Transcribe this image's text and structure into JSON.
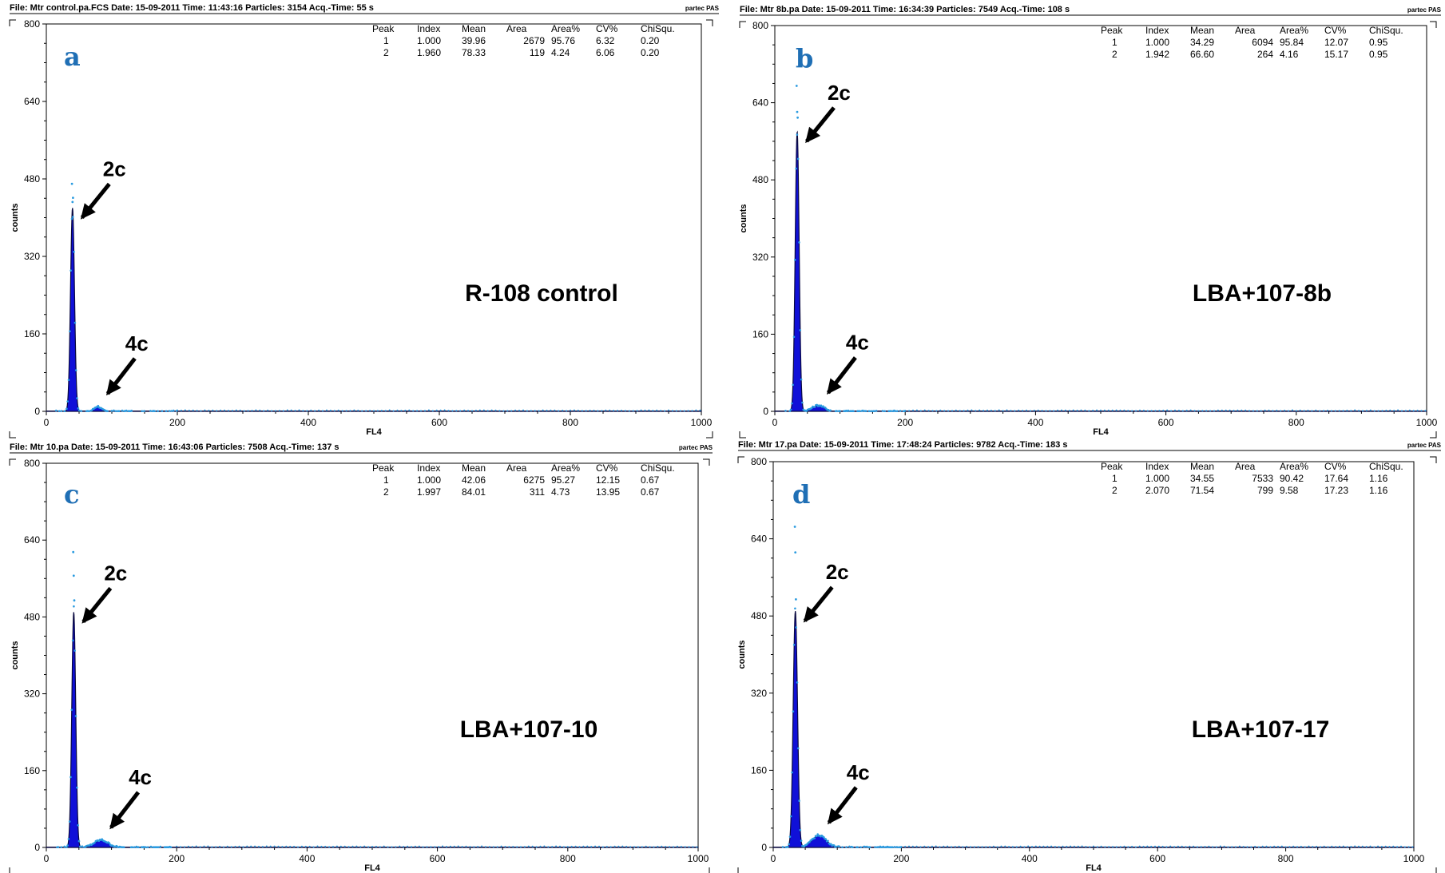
{
  "chart_data": [
    {
      "type": "area",
      "panel_letter": "a",
      "header": {
        "file": "File: Mtr control.pa.FCS",
        "date": "Date: 15-09-2011",
        "time": "Time: 11:43:16",
        "particles": "Particles: 3154",
        "acq_time": "Acq.-Time: 55 s",
        "brand": "partec PAS"
      },
      "xlabel": "FL4",
      "ylabel": "counts",
      "xlim": [
        0,
        1000
      ],
      "ylim": [
        0,
        800
      ],
      "x_ticks": [
        "0",
        "200",
        "400",
        "600",
        "800",
        "1000"
      ],
      "y_ticks": [
        "0",
        "160",
        "320",
        "480",
        "640",
        "800"
      ],
      "sample_label": "R-108 control",
      "annotations": {
        "peak1": "2c",
        "peak2": "4c"
      },
      "stats_table": {
        "columns": [
          "Peak",
          "Index",
          "Mean",
          "Area",
          "Area%",
          "CV%",
          "ChiSqu."
        ],
        "rows": [
          [
            "1",
            "1.000",
            "39.96",
            "2679",
            "95.76",
            "6.32",
            "0.20"
          ],
          [
            "2",
            "1.960",
            "78.33",
            "119",
            "4.24",
            "6.06",
            "0.20"
          ]
        ]
      },
      "peaks": [
        {
          "mean": 39.96,
          "height": 420,
          "cv": 6.32
        },
        {
          "mean": 78.33,
          "height": 10,
          "cv": 6.06
        }
      ],
      "outlier_max": 470
    },
    {
      "type": "area",
      "panel_letter": "b",
      "header": {
        "file": "File: Mtr 8b.pa",
        "date": "Date: 15-09-2011",
        "time": "Time: 16:34:39",
        "particles": "Particles: 7549",
        "acq_time": "Acq.-Time: 108 s",
        "brand": "partec PAS"
      },
      "xlabel": "FL4",
      "ylabel": "counts",
      "xlim": [
        0,
        1000
      ],
      "ylim": [
        0,
        800
      ],
      "x_ticks": [
        "0",
        "200",
        "400",
        "600",
        "800",
        "1000"
      ],
      "y_ticks": [
        "0",
        "160",
        "320",
        "480",
        "640",
        "800"
      ],
      "sample_label": "LBA+107-8b",
      "annotations": {
        "peak1": "2c",
        "peak2": "4c"
      },
      "stats_table": {
        "columns": [
          "Peak",
          "Index",
          "Mean",
          "Area",
          "Area%",
          "CV%",
          "ChiSqu."
        ],
        "rows": [
          [
            "1",
            "1.000",
            "34.29",
            "6094",
            "95.84",
            "12.07",
            "0.95"
          ],
          [
            "2",
            "1.942",
            "66.60",
            "264",
            "4.16",
            "15.17",
            "0.95"
          ]
        ]
      },
      "peaks": [
        {
          "mean": 34.29,
          "height": 580,
          "cv": 12.07
        },
        {
          "mean": 66.6,
          "height": 12,
          "cv": 15.17
        }
      ],
      "outlier_max": 675
    },
    {
      "type": "area",
      "panel_letter": "c",
      "header": {
        "file": "File: Mtr 10.pa",
        "date": "Date: 15-09-2011",
        "time": "Time: 16:43:06",
        "particles": "Particles: 7508",
        "acq_time": "Acq.-Time: 137 s",
        "brand": "partec PAS"
      },
      "xlabel": "FL4",
      "ylabel": "counts",
      "xlim": [
        0,
        1000
      ],
      "ylim": [
        0,
        800
      ],
      "x_ticks": [
        "0",
        "200",
        "400",
        "600",
        "800",
        "1000"
      ],
      "y_ticks": [
        "0",
        "160",
        "320",
        "480",
        "640",
        "800"
      ],
      "sample_label": "LBA+107-10",
      "annotations": {
        "peak1": "2c",
        "peak2": "4c"
      },
      "stats_table": {
        "columns": [
          "Peak",
          "Index",
          "Mean",
          "Area",
          "Area%",
          "CV%",
          "ChiSqu."
        ],
        "rows": [
          [
            "1",
            "1.000",
            "42.06",
            "6275",
            "95.27",
            "12.15",
            "0.67"
          ],
          [
            "2",
            "1.997",
            "84.01",
            "311",
            "4.73",
            "13.95",
            "0.67"
          ]
        ]
      },
      "peaks": [
        {
          "mean": 42.06,
          "height": 490,
          "cv": 12.15
        },
        {
          "mean": 84.01,
          "height": 15,
          "cv": 13.95
        }
      ],
      "outlier_max": 615
    },
    {
      "type": "area",
      "panel_letter": "d",
      "header": {
        "file": "File: Mtr 17.pa",
        "date": "Date: 15-09-2011",
        "time": "Time: 17:48:24",
        "particles": "Particles: 9782",
        "acq_time": "Acq.-Time: 183 s",
        "brand": "partec PAS"
      },
      "xlabel": "FL4",
      "ylabel": "counts",
      "xlim": [
        0,
        1000
      ],
      "ylim": [
        0,
        800
      ],
      "x_ticks": [
        "0",
        "200",
        "400",
        "600",
        "800",
        "1000"
      ],
      "y_ticks": [
        "0",
        "160",
        "320",
        "480",
        "640",
        "800"
      ],
      "sample_label": "LBA+107-17",
      "annotations": {
        "peak1": "2c",
        "peak2": "4c"
      },
      "stats_table": {
        "columns": [
          "Peak",
          "Index",
          "Mean",
          "Area",
          "Area%",
          "CV%",
          "ChiSqu."
        ],
        "rows": [
          [
            "1",
            "1.000",
            "34.55",
            "7533",
            "90.42",
            "17.64",
            "1.16"
          ],
          [
            "2",
            "2.070",
            "71.54",
            "799",
            "9.58",
            "17.23",
            "1.16"
          ]
        ]
      },
      "peaks": [
        {
          "mean": 34.55,
          "height": 490,
          "cv": 17.64
        },
        {
          "mean": 71.54,
          "height": 25,
          "cv": 17.23
        }
      ],
      "outlier_max": 665
    }
  ],
  "colors": {
    "histogram_fill": "#1010d8",
    "histogram_outline": "#0a0a40",
    "dots": "#2a9be0",
    "panel_letter": "#1f6fb5"
  }
}
